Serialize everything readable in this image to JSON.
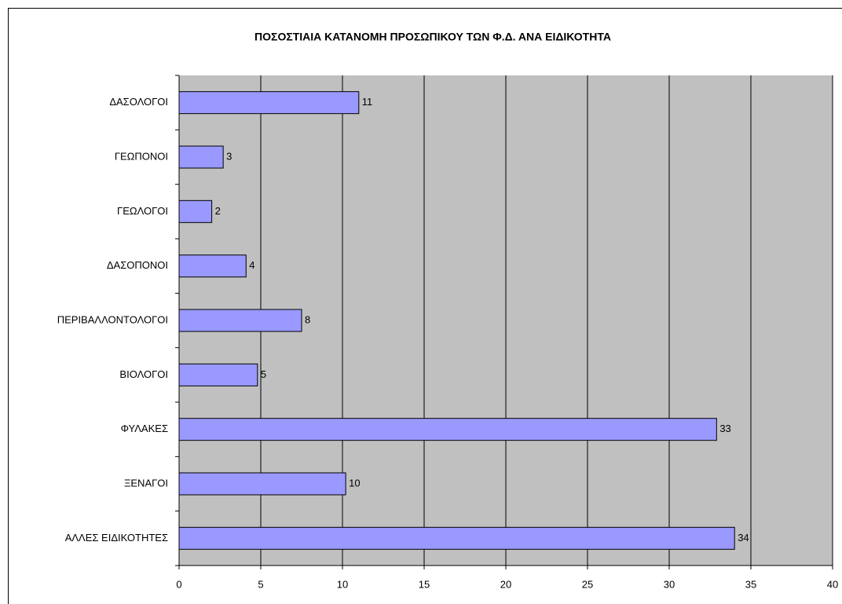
{
  "chart_data": {
    "type": "bar",
    "orientation": "horizontal",
    "title": "ΠΟΣΟΣΤΙΑΙΑ ΚΑΤΑΝΟΜΗ ΠΡΟΣΩΠΙΚΟΥ ΤΩΝ Φ.Δ. ΑΝΑ ΕΙΔΙΚΟΤΗΤΑ",
    "categories": [
      "ΔΑΣΟΛΟΓΟΙ",
      "ΓΕΩΠΟΝΟΙ",
      "ΓΕΩΛΟΓΟΙ",
      "ΔΑΣΟΠΟΝΟΙ",
      "ΠΕΡΙΒΑΛΛΟΝΤΟΛΟΓΟΙ",
      "ΒΙΟΛΟΓΟΙ",
      "ΦΥΛΑΚΕΣ",
      "ΞΕΝΑΓΟΙ",
      "ΑΛΛΕΣ ΕΙΔΙΚΟΤΗΤΕΣ"
    ],
    "values": [
      11.0,
      2.7,
      2.0,
      4.1,
      7.5,
      4.8,
      32.9,
      10.2,
      34.0
    ],
    "value_labels": [
      "11",
      "3",
      "2",
      "4",
      "8",
      "5",
      "33",
      "10",
      "34"
    ],
    "color": "#9999ff",
    "xlim": [
      0,
      40
    ],
    "xticks": [
      0,
      5,
      10,
      15,
      20,
      25,
      30,
      35,
      40
    ],
    "grid": true
  }
}
